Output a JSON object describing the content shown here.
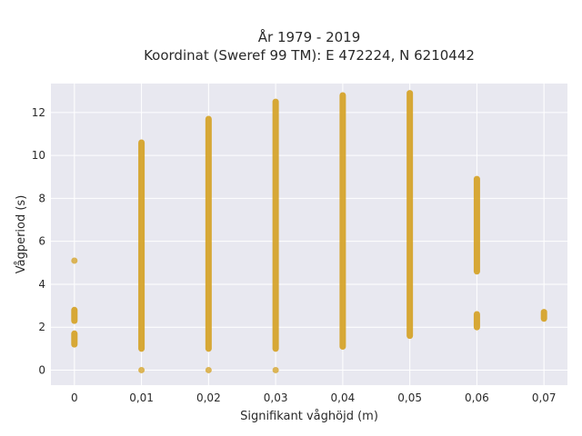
{
  "chart_data": {
    "type": "scatter",
    "title_line1": "År 1979 - 2019",
    "title_line2": "Koordinat (Sweref 99 TM): E 472224, N 6210442",
    "xlabel": "Signifikant våghöjd (m)",
    "ylabel": "Vågperiod (s)",
    "xlim": [
      -0.0035,
      0.0735
    ],
    "ylim": [
      -0.7,
      13.35
    ],
    "x_ticks": [
      0,
      0.01,
      0.02,
      0.03,
      0.04,
      0.05,
      0.06,
      0.07
    ],
    "x_tick_labels": [
      "0",
      "0,01",
      "0,02",
      "0,03",
      "0,04",
      "0,05",
      "0,06",
      "0,07"
    ],
    "y_ticks": [
      0,
      2,
      4,
      6,
      8,
      10,
      12
    ],
    "y_tick_labels": [
      "0",
      "2",
      "4",
      "6",
      "8",
      "10",
      "12"
    ],
    "grid": true,
    "colors": {
      "background": "#e8e8f0",
      "grid": "#ffffff",
      "marker": "#d4a020"
    },
    "series": [
      {
        "columns": [
          {
            "x": 0.0,
            "ranges": [
              [
                1.2,
                1.7
              ],
              [
                2.3,
                2.8
              ]
            ],
            "points": [
              5.1
            ]
          },
          {
            "x": 0.01,
            "ranges": [
              [
                1.0,
                10.6
              ]
            ],
            "points": [
              0.0
            ]
          },
          {
            "x": 0.02,
            "ranges": [
              [
                1.0,
                11.7
              ]
            ],
            "points": [
              0.0
            ]
          },
          {
            "x": 0.03,
            "ranges": [
              [
                1.0,
                12.5
              ]
            ],
            "points": [
              0.0
            ]
          },
          {
            "x": 0.04,
            "ranges": [
              [
                1.1,
                12.8
              ]
            ],
            "points": []
          },
          {
            "x": 0.05,
            "ranges": [
              [
                1.6,
                12.9
              ]
            ],
            "points": []
          },
          {
            "x": 0.06,
            "ranges": [
              [
                2.0,
                2.6
              ],
              [
                4.6,
                8.9
              ]
            ],
            "points": []
          },
          {
            "x": 0.07,
            "ranges": [
              [
                2.4,
                2.7
              ]
            ],
            "points": []
          }
        ]
      }
    ]
  }
}
